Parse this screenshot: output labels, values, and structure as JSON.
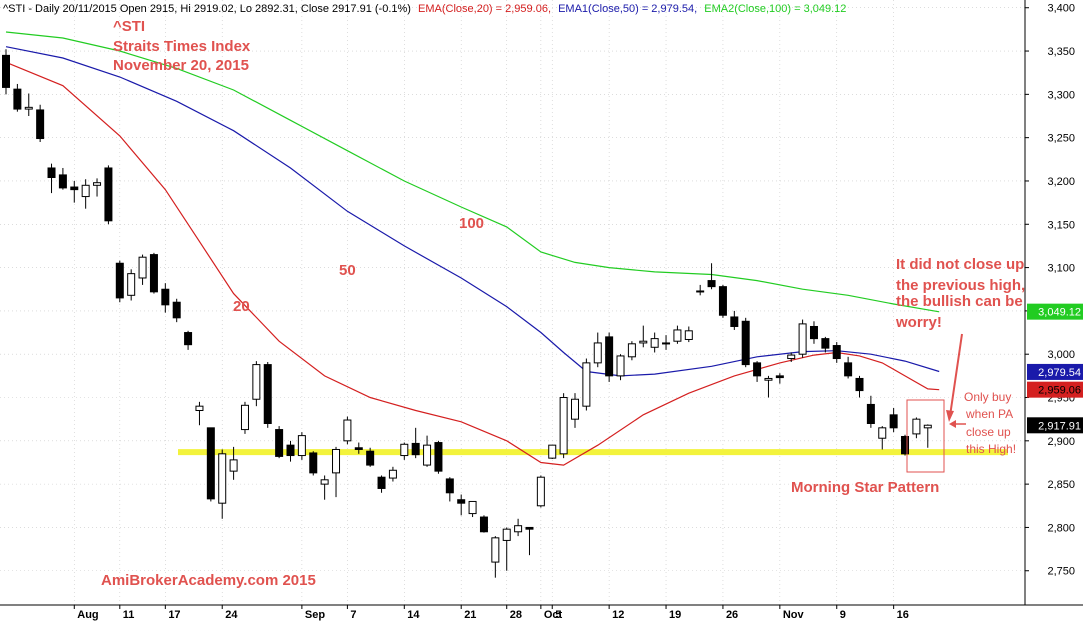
{
  "header": {
    "prefix": "^STI - Daily 20/11/2015 Open 2915, Hi 2919.02, Lo 2892.31, Close 2917.91 (-0.1%)",
    "ema20": "EMA(Close,20) = 2,959.06,",
    "ema50": "EMA1(Close,50) = 2,979.54,",
    "ema100": "EMA2(Close,100) = 3,049.12"
  },
  "colors": {
    "ema20": "#d42020",
    "ema50": "#1a1aaa",
    "ema100": "#22cc22",
    "annotation": "#e0524f",
    "support": "#f3f33c",
    "bull_candle": "#ffffff",
    "bear_candle": "#000000"
  },
  "chart_data": {
    "type": "candlestick",
    "yaxis": {
      "ylim": [
        2722,
        3402
      ],
      "ticks": [
        "3,400",
        "3,350",
        "3,300",
        "3,250",
        "3,200",
        "3,150",
        "3,100",
        "3,050",
        "3,000",
        "2,950",
        "2,900",
        "2,850",
        "2,800",
        "2,750"
      ],
      "tick_values": [
        3400,
        3350,
        3300,
        3250,
        3200,
        3150,
        3100,
        3050,
        3000,
        2950,
        2900,
        2850,
        2800,
        2750
      ]
    },
    "xaxis": {
      "date_labels": [
        {
          "label": "Aug",
          "bar": 6
        },
        {
          "label": "11",
          "bar": 10
        },
        {
          "label": "17",
          "bar": 14
        },
        {
          "label": "24",
          "bar": 19
        },
        {
          "label": "Sep",
          "bar": 26
        },
        {
          "label": "7",
          "bar": 30
        },
        {
          "label": "14",
          "bar": 35
        },
        {
          "label": "21",
          "bar": 40
        },
        {
          "label": "28",
          "bar": 44
        },
        {
          "label": "Oct",
          "bar": 47
        },
        {
          "label": "5",
          "bar": 48
        },
        {
          "label": "12",
          "bar": 53
        },
        {
          "label": "19",
          "bar": 58
        },
        {
          "label": "26",
          "bar": 63
        },
        {
          "label": "Nov",
          "bar": 68
        },
        {
          "label": "9",
          "bar": 73
        },
        {
          "label": "16",
          "bar": 78
        }
      ]
    },
    "candles": [
      {
        "o": 3345,
        "h": 3352,
        "l": 3300,
        "c": 3308
      },
      {
        "o": 3306,
        "h": 3312,
        "l": 3280,
        "c": 3283
      },
      {
        "o": 3283,
        "h": 3301,
        "l": 3275,
        "c": 3285
      },
      {
        "o": 3282,
        "h": 3288,
        "l": 3245,
        "c": 3249
      },
      {
        "o": 3215,
        "h": 3220,
        "l": 3186,
        "c": 3204
      },
      {
        "o": 3207,
        "h": 3215,
        "l": 3190,
        "c": 3192
      },
      {
        "o": 3193,
        "h": 3200,
        "l": 3175,
        "c": 3190
      },
      {
        "o": 3182,
        "h": 3202,
        "l": 3168,
        "c": 3195
      },
      {
        "o": 3195,
        "h": 3203,
        "l": 3182,
        "c": 3198
      },
      {
        "o": 3215,
        "h": 3218,
        "l": 3150,
        "c": 3154
      },
      {
        "o": 3105,
        "h": 3108,
        "l": 3060,
        "c": 3065
      },
      {
        "o": 3068,
        "h": 3098,
        "l": 3062,
        "c": 3093
      },
      {
        "o": 3088,
        "h": 3115,
        "l": 3080,
        "c": 3112
      },
      {
        "o": 3115,
        "h": 3117,
        "l": 3070,
        "c": 3072
      },
      {
        "o": 3075,
        "h": 3082,
        "l": 3048,
        "c": 3057
      },
      {
        "o": 3060,
        "h": 3064,
        "l": 3037,
        "c": 3042
      },
      {
        "o": 3025,
        "h": 3027,
        "l": 3005,
        "c": 3011
      },
      {
        "o": 2935,
        "h": 2945,
        "l": 2918,
        "c": 2940
      },
      {
        "o": 2915,
        "h": 2915,
        "l": 2830,
        "c": 2833
      },
      {
        "o": 2828,
        "h": 2890,
        "l": 2810,
        "c": 2885
      },
      {
        "o": 2865,
        "h": 2893,
        "l": 2855,
        "c": 2878
      },
      {
        "o": 2913,
        "h": 2945,
        "l": 2908,
        "c": 2941
      },
      {
        "o": 2948,
        "h": 2992,
        "l": 2940,
        "c": 2988
      },
      {
        "o": 2988,
        "h": 2991,
        "l": 2915,
        "c": 2920
      },
      {
        "o": 2913,
        "h": 2917,
        "l": 2880,
        "c": 2882
      },
      {
        "o": 2895,
        "h": 2900,
        "l": 2876,
        "c": 2883
      },
      {
        "o": 2883,
        "h": 2910,
        "l": 2878,
        "c": 2906
      },
      {
        "o": 2886,
        "h": 2888,
        "l": 2860,
        "c": 2863
      },
      {
        "o": 2850,
        "h": 2860,
        "l": 2832,
        "c": 2855
      },
      {
        "o": 2863,
        "h": 2893,
        "l": 2835,
        "c": 2890
      },
      {
        "o": 2900,
        "h": 2928,
        "l": 2896,
        "c": 2924
      },
      {
        "o": 2892,
        "h": 2898,
        "l": 2885,
        "c": 2890
      },
      {
        "o": 2888,
        "h": 2892,
        "l": 2870,
        "c": 2872
      },
      {
        "o": 2858,
        "h": 2860,
        "l": 2840,
        "c": 2845
      },
      {
        "o": 2857,
        "h": 2870,
        "l": 2853,
        "c": 2866
      },
      {
        "o": 2883,
        "h": 2898,
        "l": 2878,
        "c": 2896
      },
      {
        "o": 2897,
        "h": 2915,
        "l": 2880,
        "c": 2884
      },
      {
        "o": 2872,
        "h": 2906,
        "l": 2870,
        "c": 2895
      },
      {
        "o": 2898,
        "h": 2900,
        "l": 2862,
        "c": 2865
      },
      {
        "o": 2856,
        "h": 2858,
        "l": 2830,
        "c": 2840
      },
      {
        "o": 2832,
        "h": 2838,
        "l": 2814,
        "c": 2828
      },
      {
        "o": 2816,
        "h": 2830,
        "l": 2812,
        "c": 2830
      },
      {
        "o": 2812,
        "h": 2814,
        "l": 2794,
        "c": 2795
      },
      {
        "o": 2760,
        "h": 2790,
        "l": 2742,
        "c": 2788
      },
      {
        "o": 2785,
        "h": 2800,
        "l": 2750,
        "c": 2798
      },
      {
        "o": 2795,
        "h": 2810,
        "l": 2790,
        "c": 2802
      },
      {
        "o": 2800,
        "h": 2800,
        "l": 2768,
        "c": 2798
      },
      {
        "o": 2825,
        "h": 2860,
        "l": 2823,
        "c": 2858
      },
      {
        "o": 2880,
        "h": 2895,
        "l": 2879,
        "c": 2895
      },
      {
        "o": 2885,
        "h": 2955,
        "l": 2880,
        "c": 2950
      },
      {
        "o": 2925,
        "h": 2955,
        "l": 2915,
        "c": 2948
      },
      {
        "o": 2940,
        "h": 2995,
        "l": 2935,
        "c": 2990
      },
      {
        "o": 2990,
        "h": 3025,
        "l": 2985,
        "c": 3013
      },
      {
        "o": 3020,
        "h": 3025,
        "l": 2968,
        "c": 2975
      },
      {
        "o": 2975,
        "h": 3000,
        "l": 2970,
        "c": 2998
      },
      {
        "o": 2997,
        "h": 3015,
        "l": 2993,
        "c": 3012
      },
      {
        "o": 3013,
        "h": 3033,
        "l": 3008,
        "c": 3015
      },
      {
        "o": 3008,
        "h": 3025,
        "l": 3002,
        "c": 3018
      },
      {
        "o": 3013,
        "h": 3022,
        "l": 3005,
        "c": 3012
      },
      {
        "o": 3015,
        "h": 3033,
        "l": 3012,
        "c": 3028
      },
      {
        "o": 3017,
        "h": 3032,
        "l": 3014,
        "c": 3027
      },
      {
        "o": 3072,
        "h": 3080,
        "l": 3068,
        "c": 3073
      },
      {
        "o": 3085,
        "h": 3105,
        "l": 3075,
        "c": 3078
      },
      {
        "o": 3078,
        "h": 3080,
        "l": 3042,
        "c": 3045
      },
      {
        "o": 3043,
        "h": 3050,
        "l": 3028,
        "c": 3032
      },
      {
        "o": 3038,
        "h": 3042,
        "l": 2985,
        "c": 2988
      },
      {
        "o": 2990,
        "h": 2992,
        "l": 2968,
        "c": 2975
      },
      {
        "o": 2970,
        "h": 2975,
        "l": 2950,
        "c": 2972
      },
      {
        "o": 2975,
        "h": 2978,
        "l": 2966,
        "c": 2973
      },
      {
        "o": 2995,
        "h": 3002,
        "l": 2991,
        "c": 2999
      },
      {
        "o": 3000,
        "h": 3040,
        "l": 2996,
        "c": 3035
      },
      {
        "o": 3032,
        "h": 3038,
        "l": 3012,
        "c": 3018
      },
      {
        "o": 3018,
        "h": 3020,
        "l": 3002,
        "c": 3007
      },
      {
        "o": 3010,
        "h": 3014,
        "l": 2990,
        "c": 2995
      },
      {
        "o": 2990,
        "h": 2997,
        "l": 2972,
        "c": 2975
      },
      {
        "o": 2972,
        "h": 2975,
        "l": 2950,
        "c": 2958
      },
      {
        "o": 2942,
        "h": 2952,
        "l": 2915,
        "c": 2920
      },
      {
        "o": 2903,
        "h": 2917,
        "l": 2890,
        "c": 2915
      },
      {
        "o": 2930,
        "h": 2938,
        "l": 2910,
        "c": 2915
      },
      {
        "o": 2905,
        "h": 2907,
        "l": 2883,
        "c": 2885
      },
      {
        "o": 2908,
        "h": 2927,
        "l": 2903,
        "c": 2925
      },
      {
        "o": 2915,
        "h": 2919,
        "l": 2892,
        "c": 2918
      }
    ],
    "series": [
      {
        "name": "EMA(Close,20)",
        "color": "#d42020",
        "points": [
          [
            0,
            3337
          ],
          [
            5,
            3310
          ],
          [
            10,
            3252
          ],
          [
            14,
            3190
          ],
          [
            17,
            3130
          ],
          [
            20,
            3070
          ],
          [
            24,
            3015
          ],
          [
            28,
            2975
          ],
          [
            32,
            2950
          ],
          [
            36,
            2935
          ],
          [
            40,
            2922
          ],
          [
            44,
            2900
          ],
          [
            47,
            2875
          ],
          [
            49,
            2872
          ],
          [
            52,
            2895
          ],
          [
            56,
            2930
          ],
          [
            60,
            2955
          ],
          [
            64,
            2975
          ],
          [
            68,
            2990
          ],
          [
            71,
            2999
          ],
          [
            73,
            3002
          ],
          [
            75,
            2998
          ],
          [
            77,
            2990
          ],
          [
            79,
            2975
          ],
          [
            81,
            2960
          ],
          [
            82,
            2959
          ]
        ]
      },
      {
        "name": "EMA1(Close,50)",
        "color": "#1a1aaa",
        "points": [
          [
            0,
            3355
          ],
          [
            5,
            3342
          ],
          [
            10,
            3320
          ],
          [
            15,
            3292
          ],
          [
            20,
            3258
          ],
          [
            25,
            3215
          ],
          [
            30,
            3165
          ],
          [
            35,
            3125
          ],
          [
            40,
            3088
          ],
          [
            44,
            3055
          ],
          [
            47,
            3025
          ],
          [
            49,
            3002
          ],
          [
            51,
            2980
          ],
          [
            54,
            2975
          ],
          [
            57,
            2977
          ],
          [
            62,
            2986
          ],
          [
            66,
            2997
          ],
          [
            70,
            3003
          ],
          [
            73,
            3004
          ],
          [
            76,
            3000
          ],
          [
            79,
            2992
          ],
          [
            82,
            2980
          ]
        ]
      },
      {
        "name": "EMA2(Close,100)",
        "color": "#22cc22",
        "points": [
          [
            0,
            3372
          ],
          [
            5,
            3365
          ],
          [
            10,
            3350
          ],
          [
            15,
            3330
          ],
          [
            20,
            3305
          ],
          [
            25,
            3270
          ],
          [
            30,
            3235
          ],
          [
            35,
            3200
          ],
          [
            40,
            3170
          ],
          [
            44,
            3147
          ],
          [
            47,
            3118
          ],
          [
            50,
            3106
          ],
          [
            53,
            3100
          ],
          [
            57,
            3095
          ],
          [
            62,
            3092
          ],
          [
            66,
            3085
          ],
          [
            70,
            3075
          ],
          [
            74,
            3068
          ],
          [
            78,
            3058
          ],
          [
            82,
            3049
          ]
        ]
      }
    ],
    "support_level": 2887,
    "last_values": [
      {
        "label": "3,049.12",
        "value": 3049.12,
        "bg": "#22cc22",
        "fg": "#ffffff"
      },
      {
        "label": "2,979.54",
        "value": 2979.54,
        "bg": "#1a1aaa",
        "fg": "#ffffff"
      },
      {
        "label": "2,959.06",
        "value": 2959.06,
        "bg": "#d42020",
        "fg": "#000000"
      },
      {
        "label": "2,917.91",
        "value": 2917.91,
        "bg": "#000000",
        "fg": "#ffffff"
      }
    ]
  },
  "annotations": {
    "title1": "^STI",
    "title2": "Straits Times Index",
    "title3": "November 20, 2015",
    "ema20_label": "20",
    "ema50_label": "50",
    "ema100_label": "100",
    "note1": "It did not close up",
    "note2": "the previous high,",
    "note3": "the bullish can be",
    "note4": "worry!",
    "buy1": "Only buy",
    "buy2": "when PA",
    "buy3": "close up",
    "buy4": "this High!",
    "pattern": "Morning Star Pattern",
    "site": "AmiBrokerAcademy.com 2015"
  }
}
